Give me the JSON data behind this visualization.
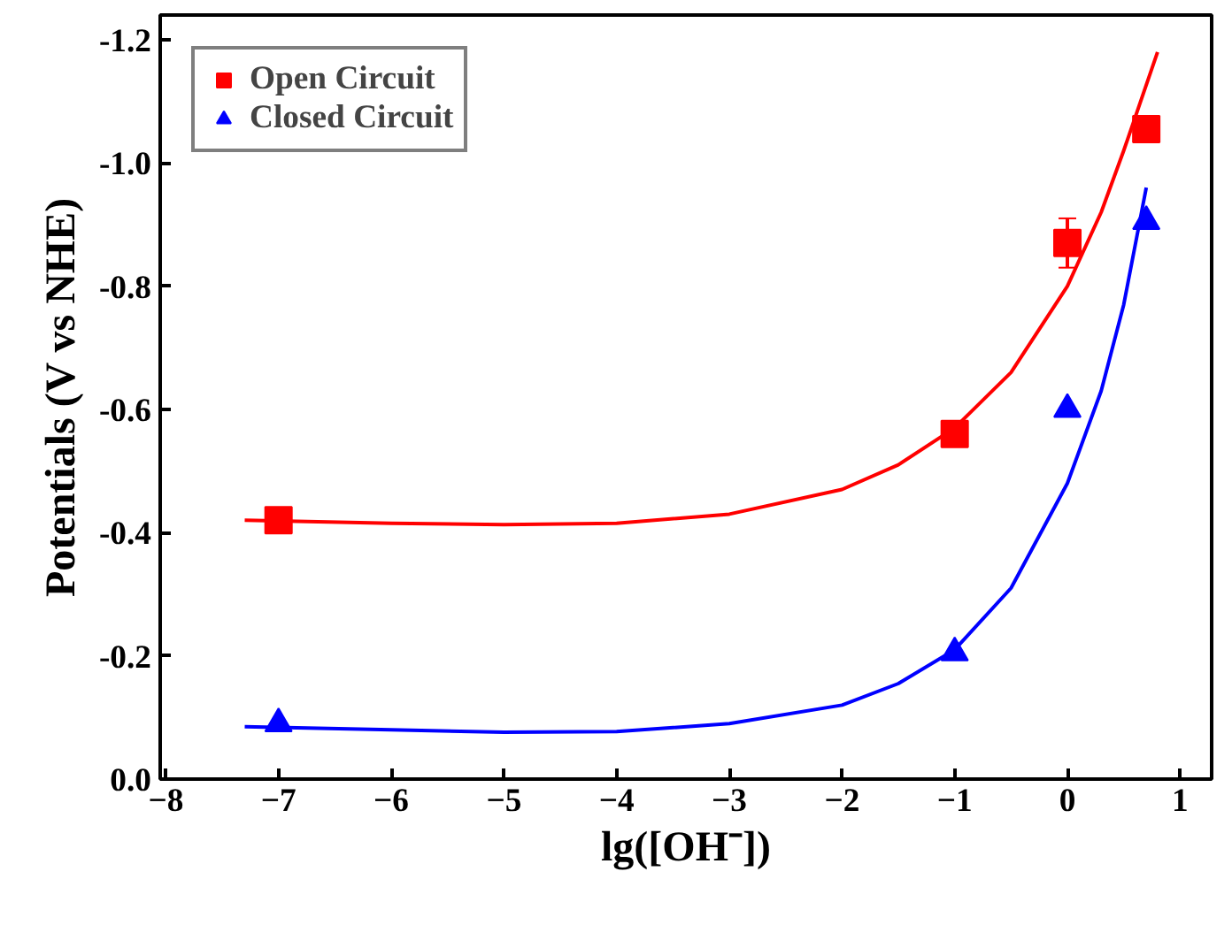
{
  "chart_data": {
    "type": "scatter",
    "xlabel": "lg([OH⁻])",
    "ylabel": "Potentials (V vs NHE)",
    "xlim": [
      -8.05,
      1.28
    ],
    "ylim": [
      0.0,
      -1.24
    ],
    "xticks": [
      -8,
      -7,
      -6,
      -5,
      -4,
      -3,
      -2,
      -1,
      0,
      1
    ],
    "yticks": [
      {
        "value": 0.0,
        "label": "0.0"
      },
      {
        "value": -0.2,
        "label": "-0.2"
      },
      {
        "value": -0.4,
        "label": "-0.4"
      },
      {
        "value": -0.6,
        "label": "-0.6"
      },
      {
        "value": -0.8,
        "label": "-0.8"
      },
      {
        "value": -1.0,
        "label": "-1.0"
      },
      {
        "value": -1.2,
        "label": "-1.2"
      }
    ],
    "grid": false,
    "legend": "top left",
    "series": [
      {
        "name": "Open Circuit",
        "marker": "square",
        "color": "#ff0000",
        "x": [
          -7,
          -1,
          0,
          0.7
        ],
        "values": [
          -0.42,
          -0.56,
          -0.87,
          -1.055
        ],
        "errors": [
          null,
          null,
          0.04,
          null
        ]
      },
      {
        "name": "Closed Circuit",
        "marker": "triangle",
        "color": "#0000ff",
        "x": [
          -7,
          -1,
          0,
          0.7
        ],
        "values": [
          -0.09,
          -0.205,
          -0.6,
          -0.905
        ]
      },
      {
        "type": "line",
        "color": "#ff0000",
        "x": [
          -7.3,
          -6,
          -5,
          -4,
          -3,
          -2,
          -1.5,
          -1,
          -0.5,
          0,
          0.3,
          0.5,
          0.8
        ],
        "values": [
          -0.42,
          -0.415,
          -0.413,
          -0.415,
          -0.43,
          -0.47,
          -0.51,
          -0.57,
          -0.66,
          -0.8,
          -0.92,
          -1.02,
          -1.18
        ]
      },
      {
        "type": "line",
        "color": "#0000ff",
        "x": [
          -7.3,
          -6,
          -5,
          -4,
          -3,
          -2,
          -1.5,
          -1,
          -0.5,
          0,
          0.3,
          0.5,
          0.7
        ],
        "values": [
          -0.085,
          -0.08,
          -0.076,
          -0.077,
          -0.09,
          -0.12,
          -0.155,
          -0.21,
          -0.31,
          -0.48,
          -0.63,
          -0.77,
          -0.96
        ]
      }
    ]
  }
}
